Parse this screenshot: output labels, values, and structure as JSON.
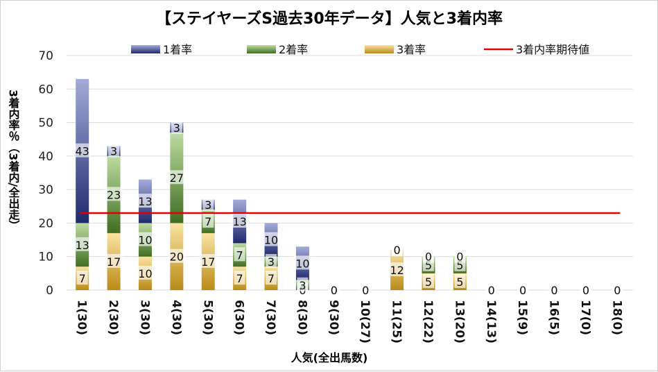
{
  "chart_data": {
    "type": "bar",
    "stacked": true,
    "title": "【ステイヤーズS過去30年データ】人気と3着内率",
    "xlabel": "人気(全出馬数)",
    "ylabel": "3着内率％（3着内/全出走）",
    "ylim": [
      0,
      70
    ],
    "yticks": [
      0,
      10,
      20,
      30,
      40,
      50,
      60,
      70
    ],
    "grid": true,
    "legend_position": "top",
    "categories": [
      "1(30)",
      "2(30)",
      "3(30)",
      "4(30)",
      "5(30)",
      "6(30)",
      "7(30)",
      "8(30)",
      "9(30)",
      "10(27)",
      "11(25)",
      "12(22)",
      "13(20)",
      "14(13)",
      "15(9)",
      "16(5)",
      "17(0)",
      "18(0)"
    ],
    "series": [
      {
        "name": "3着率",
        "color": "#c9a227",
        "values": [
          7,
          17,
          10,
          20,
          17,
          7,
          7,
          0,
          0,
          0,
          12,
          5,
          5,
          0,
          0,
          0,
          0,
          0
        ]
      },
      {
        "name": "2着率",
        "color": "#6f9a45",
        "values": [
          13,
          23,
          10,
          27,
          7,
          7,
          3,
          3,
          0,
          0,
          0,
          5,
          5,
          0,
          0,
          0,
          0,
          0
        ]
      },
      {
        "name": "1着率",
        "color": "#3c4a92",
        "values": [
          43,
          3,
          13,
          3,
          3,
          13,
          10,
          10,
          0,
          0,
          0,
          0,
          0,
          0,
          0,
          0,
          0,
          0
        ]
      }
    ],
    "reference_line": {
      "name": "3着内率期待値",
      "color": "#e00000",
      "value": 23
    }
  }
}
